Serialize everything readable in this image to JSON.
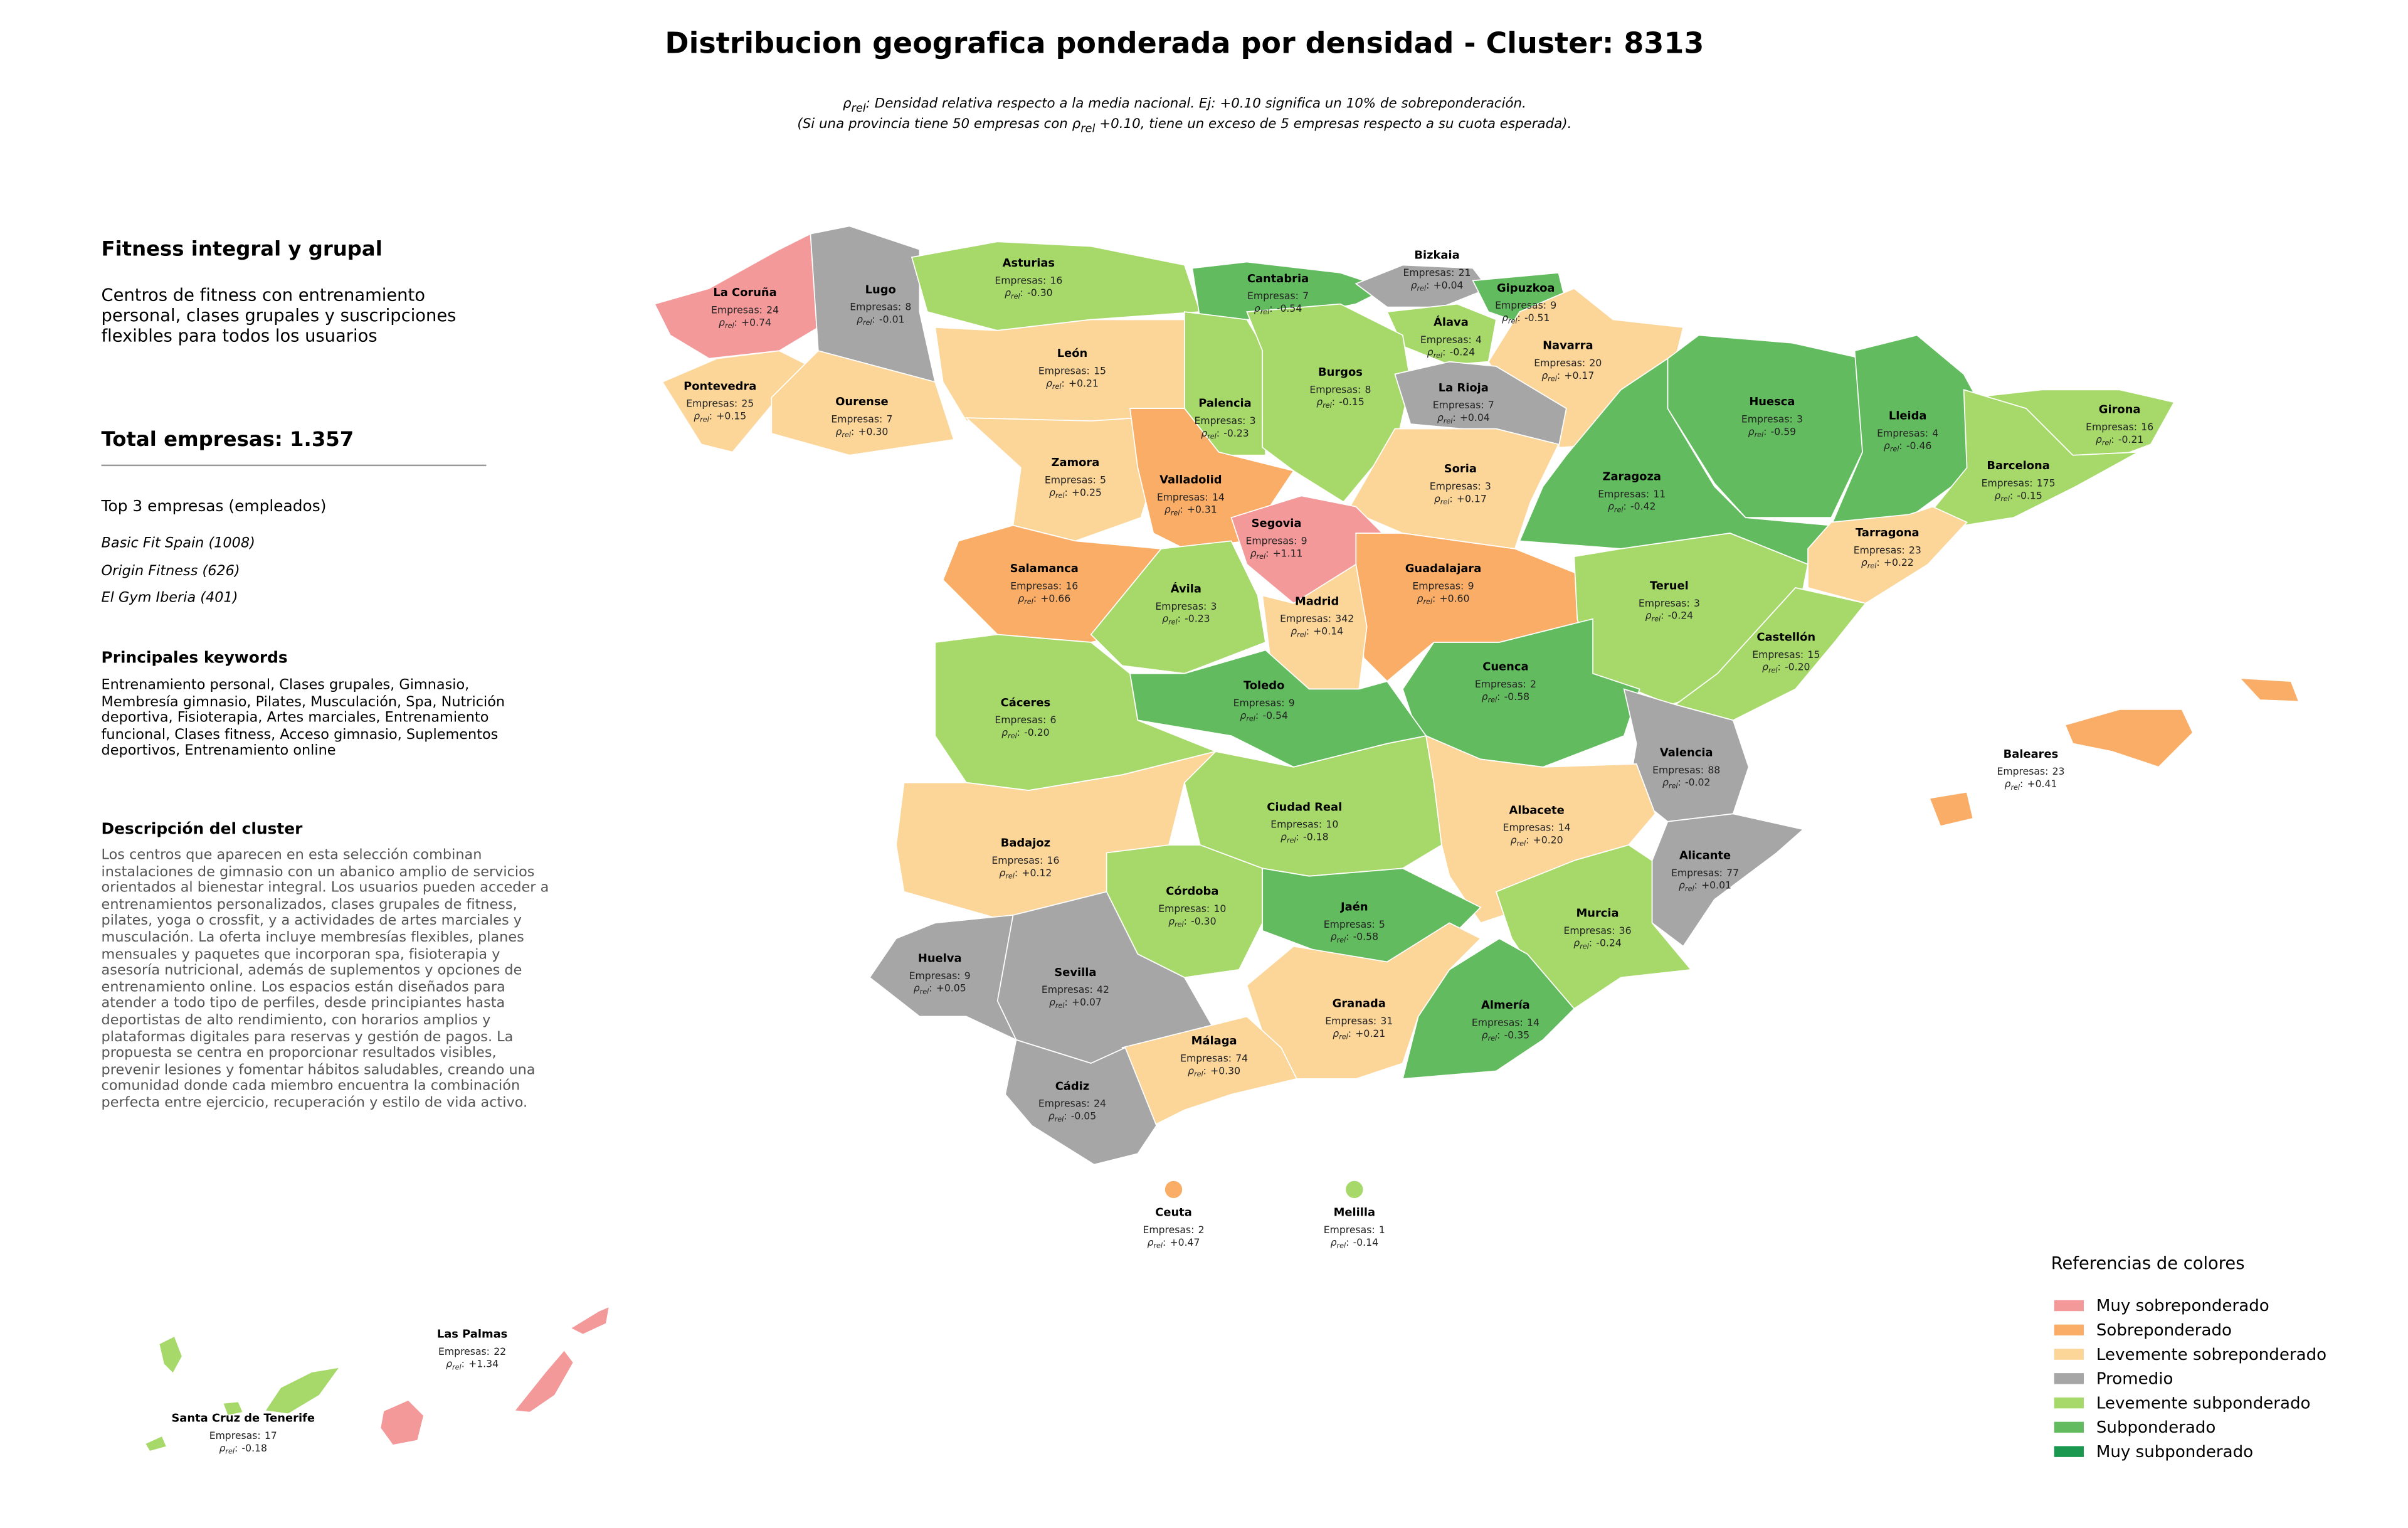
{
  "header": {
    "title": "Distribucion geografica ponderada por densidad - Cluster: 8313",
    "subtitle": {
      "line1": ": Densidad relativa respecto a la media nacional. Ej: +0.10 significa un 10% de sobreponderación.",
      "line2_pre": "(Si una provincia tiene 50 empresas con ",
      "line2_post": " +0.10, tiene un exceso de 5 empresas respecto a su cuota esperada)."
    }
  },
  "labels": {
    "empresas": "Empresas:",
    "rho_symbol": "ρ",
    "rho_sub": "rel",
    "rho_colon": ":"
  },
  "sidebar": {
    "title": "Fitness integral y grupal",
    "description": "Centros de fitness con entrenamiento personal, clases grupales y suscripciones flexibles para todos los usuarios",
    "total": "Total empresas: 1.357",
    "top_title": "Top 3 empresas (empleados)",
    "top": [
      "Basic Fit Spain (1008)",
      "Origin Fitness (626)",
      "El Gym Iberia (401)"
    ],
    "keywords_title": "Principales keywords",
    "keywords": "Entrenamiento personal, Clases grupales, Gimnasio, Membresía gimnasio, Pilates, Musculación, Spa, Nutrición deportiva, Fisioterapia, Artes marciales, Entrenamiento funcional, Clases fitness, Acceso gimnasio, Suplementos deportivos, Entrenamiento online",
    "cluster_title": "Descripción del cluster",
    "cluster_text": "Los centros que aparecen en esta selección combinan instalaciones de gimnasio con un abanico amplio de servicios orientados al bienestar integral. Los usuarios pueden acceder a entrenamientos personalizados, clases grupales de fitness, pilates, yoga o crossfit, y a actividades de artes marciales y musculación. La oferta incluye membresías flexibles, planes mensuales y paquetes que incorporan spa, fisioterapia y asesoría nutricional, además de suplementos y opciones de entrenamiento online. Los espacios están diseñados para atender a todo tipo de perfiles, desde principiantes hasta deportistas de alto rendimiento, con horarios amplios y plataformas digitales para reservas y gestión de pagos. La propuesta se centra en proporcionar resultados visibles, prevenir lesiones y fomentar hábitos saludables, creando una comunidad donde cada miembro encuentra la combinación perfecta entre ejercicio, recuperación y estilo de vida activo."
  },
  "provinces": [
    {
      "name": "La Coruña",
      "empresas": 24,
      "rho": "+0.74",
      "color": "#f4999a"
    },
    {
      "name": "Lugo",
      "empresas": 8,
      "rho": "-0.01",
      "color": "#a6a6a6"
    },
    {
      "name": "Asturias",
      "empresas": 16,
      "rho": "-0.30",
      "color": "#a6d96a"
    },
    {
      "name": "Cantabria",
      "empresas": 7,
      "rho": "-0.54",
      "color": "#63bb5f"
    },
    {
      "name": "Bizkaia",
      "empresas": 21,
      "rho": "+0.04",
      "color": "#a6a6a6"
    },
    {
      "name": "Gipuzkoa",
      "empresas": 9,
      "rho": "-0.51",
      "color": "#63bb5f"
    },
    {
      "name": "Álava",
      "empresas": 4,
      "rho": "-0.24",
      "color": "#a6d96a"
    },
    {
      "name": "Navarra",
      "empresas": 20,
      "rho": "+0.17",
      "color": "#fcd598"
    },
    {
      "name": "Pontevedra",
      "empresas": 25,
      "rho": "+0.15",
      "color": "#fcd598"
    },
    {
      "name": "Ourense",
      "empresas": 7,
      "rho": "+0.30",
      "color": "#fcd598"
    },
    {
      "name": "León",
      "empresas": 15,
      "rho": "+0.21",
      "color": "#fcd598"
    },
    {
      "name": "Palencia",
      "empresas": 3,
      "rho": "-0.23",
      "color": "#a6d96a"
    },
    {
      "name": "Burgos",
      "empresas": 8,
      "rho": "-0.15",
      "color": "#a6d96a"
    },
    {
      "name": "La Rioja",
      "empresas": 7,
      "rho": "+0.04",
      "color": "#a6a6a6"
    },
    {
      "name": "Huesca",
      "empresas": 3,
      "rho": "-0.59",
      "color": "#63bb5f"
    },
    {
      "name": "Lleida",
      "empresas": 4,
      "rho": "-0.46",
      "color": "#63bb5f"
    },
    {
      "name": "Girona",
      "empresas": 16,
      "rho": "-0.21",
      "color": "#a6d96a"
    },
    {
      "name": "Zamora",
      "empresas": 5,
      "rho": "+0.25",
      "color": "#fcd598"
    },
    {
      "name": "Valladolid",
      "empresas": 14,
      "rho": "+0.31",
      "color": "#f9ad67"
    },
    {
      "name": "Soria",
      "empresas": 3,
      "rho": "+0.17",
      "color": "#fcd598"
    },
    {
      "name": "Zaragoza",
      "empresas": 11,
      "rho": "-0.42",
      "color": "#63bb5f"
    },
    {
      "name": "Barcelona",
      "empresas": 175,
      "rho": "-0.15",
      "color": "#a6d96a"
    },
    {
      "name": "Segovia",
      "empresas": 9,
      "rho": "+1.11",
      "color": "#f4999a"
    },
    {
      "name": "Tarragona",
      "empresas": 23,
      "rho": "+0.22",
      "color": "#fcd598"
    },
    {
      "name": "Salamanca",
      "empresas": 16,
      "rho": "+0.66",
      "color": "#f9ad67"
    },
    {
      "name": "Guadalajara",
      "empresas": 9,
      "rho": "+0.60",
      "color": "#f9ad67"
    },
    {
      "name": "Ávila",
      "empresas": 3,
      "rho": "-0.23",
      "color": "#a6d96a"
    },
    {
      "name": "Madrid",
      "empresas": 342,
      "rho": "+0.14",
      "color": "#fcd598"
    },
    {
      "name": "Teruel",
      "empresas": 3,
      "rho": "-0.24",
      "color": "#a6d96a"
    },
    {
      "name": "Castellón",
      "empresas": 15,
      "rho": "-0.20",
      "color": "#a6d96a"
    },
    {
      "name": "Cuenca",
      "empresas": 2,
      "rho": "-0.58",
      "color": "#63bb5f"
    },
    {
      "name": "Toledo",
      "empresas": 9,
      "rho": "-0.54",
      "color": "#63bb5f"
    },
    {
      "name": "Cáceres",
      "empresas": 6,
      "rho": "-0.20",
      "color": "#a6d96a"
    },
    {
      "name": "Valencia",
      "empresas": 88,
      "rho": "-0.02",
      "color": "#a6a6a6"
    },
    {
      "name": "Baleares",
      "empresas": 23,
      "rho": "+0.41",
      "color": "#f9ad67"
    },
    {
      "name": "Ciudad Real",
      "empresas": 10,
      "rho": "-0.18",
      "color": "#a6d96a"
    },
    {
      "name": "Albacete",
      "empresas": 14,
      "rho": "+0.20",
      "color": "#fcd598"
    },
    {
      "name": "Badajoz",
      "empresas": 16,
      "rho": "+0.12",
      "color": "#fcd598"
    },
    {
      "name": "Alicante",
      "empresas": 77,
      "rho": "+0.01",
      "color": "#a6a6a6"
    },
    {
      "name": "Córdoba",
      "empresas": 10,
      "rho": "-0.30",
      "color": "#a6d96a"
    },
    {
      "name": "Jaén",
      "empresas": 5,
      "rho": "-0.58",
      "color": "#63bb5f"
    },
    {
      "name": "Murcia",
      "empresas": 36,
      "rho": "-0.24",
      "color": "#a6d96a"
    },
    {
      "name": "Huelva",
      "empresas": 9,
      "rho": "+0.05",
      "color": "#a6a6a6"
    },
    {
      "name": "Sevilla",
      "empresas": 42,
      "rho": "+0.07",
      "color": "#a6a6a6"
    },
    {
      "name": "Granada",
      "empresas": 31,
      "rho": "+0.21",
      "color": "#fcd598"
    },
    {
      "name": "Almería",
      "empresas": 14,
      "rho": "-0.35",
      "color": "#63bb5f"
    },
    {
      "name": "Málaga",
      "empresas": 74,
      "rho": "+0.30",
      "color": "#fcd598"
    },
    {
      "name": "Cádiz",
      "empresas": 24,
      "rho": "-0.05",
      "color": "#a6a6a6"
    },
    {
      "name": "Ceuta",
      "empresas": 2,
      "rho": "+0.47",
      "color": "#f9ad67"
    },
    {
      "name": "Melilla",
      "empresas": 1,
      "rho": "-0.14",
      "color": "#a6d96a"
    },
    {
      "name": "Las Palmas",
      "empresas": 22,
      "rho": "+1.34",
      "color": "#f4999a"
    },
    {
      "name": "Santa Cruz de Tenerife",
      "empresas": 17,
      "rho": "-0.18",
      "color": "#a6d96a"
    }
  ],
  "legend": {
    "title": "Referencias de colores",
    "items": [
      {
        "label": "Muy sobreponderado",
        "color": "#f4999a"
      },
      {
        "label": "Sobreponderado",
        "color": "#f9ad67"
      },
      {
        "label": "Levemente sobreponderado",
        "color": "#fcd598"
      },
      {
        "label": "Promedio",
        "color": "#a6a6a6"
      },
      {
        "label": "Levemente subponderado",
        "color": "#a6d96a"
      },
      {
        "label": "Subponderado",
        "color": "#63bb5f"
      },
      {
        "label": "Muy subponderado",
        "color": "#1a9850"
      }
    ]
  }
}
